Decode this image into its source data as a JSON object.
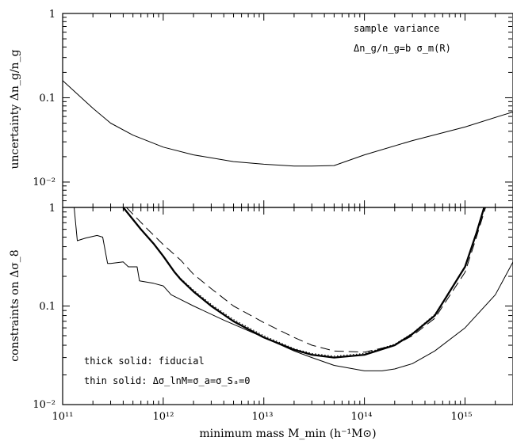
{
  "chart_data": [
    {
      "type": "line",
      "panel": "top",
      "xscale": "log",
      "yscale": "log",
      "xlim": [
        100000000000.0,
        3000000000000000.0
      ],
      "ylim": [
        0.005,
        1
      ],
      "ylabel": "uncertainty Δn_g/n_g",
      "yticks": [
        {
          "value": 1,
          "label": "1"
        },
        {
          "value": 0.1,
          "label": "0.1"
        },
        {
          "value": 0.01,
          "label": "10⁻²"
        }
      ],
      "annotations": [
        "sample variance",
        "Δn_g/n_g=b σ_m(R)"
      ],
      "series": [
        {
          "style": "thin-solid",
          "points": [
            [
              100000000000.0,
              0.16
            ],
            [
              200000000000.0,
              0.075
            ],
            [
              300000000000.0,
              0.05
            ],
            [
              500000000000.0,
              0.036
            ],
            [
              1000000000000.0,
              0.026
            ],
            [
              2000000000000.0,
              0.021
            ],
            [
              5000000000000.0,
              0.0175
            ],
            [
              10000000000000.0,
              0.0163
            ],
            [
              20000000000000.0,
              0.0155
            ],
            [
              30000000000000.0,
              0.0155
            ],
            [
              50000000000000.0,
              0.0157
            ],
            [
              100000000000000.0,
              0.021
            ],
            [
              300000000000000.0,
              0.031
            ],
            [
              1000000000000000.0,
              0.045
            ],
            [
              3000000000000000.0,
              0.068
            ]
          ]
        }
      ]
    },
    {
      "type": "line",
      "panel": "bottom",
      "xscale": "log",
      "yscale": "log",
      "xlim": [
        100000000000.0,
        3000000000000000.0
      ],
      "ylim": [
        0.01,
        1
      ],
      "xlabel": "minimum mass M_min (h⁻¹M⊙)",
      "ylabel": "constraints on Δσ_8",
      "xticks": [
        {
          "value": 100000000000.0,
          "label": "10¹¹"
        },
        {
          "value": 1000000000000.0,
          "label": "10¹²"
        },
        {
          "value": 10000000000000.0,
          "label": "10¹³"
        },
        {
          "value": 100000000000000.0,
          "label": "10¹⁴"
        },
        {
          "value": 1000000000000000.0,
          "label": "10¹⁵"
        }
      ],
      "yticks": [
        {
          "value": 1,
          "label": "1"
        },
        {
          "value": 0.1,
          "label": "0.1"
        },
        {
          "value": 0.01,
          "label": "10⁻²"
        }
      ],
      "legend": [
        "thick solid: fiducial",
        "thin solid: Δσ_lnM=σ_a=σ_Sₐ=0"
      ],
      "series": [
        {
          "style": "thick-solid",
          "points": [
            [
              400000000000.0,
              1.0
            ],
            [
              600000000000.0,
              0.6
            ],
            [
              800000000000.0,
              0.43
            ],
            [
              1000000000000.0,
              0.32
            ],
            [
              1300000000000.0,
              0.22
            ],
            [
              1500000000000.0,
              0.185
            ],
            [
              2000000000000.0,
              0.14
            ],
            [
              3000000000000.0,
              0.1
            ],
            [
              5000000000000.0,
              0.07
            ],
            [
              10000000000000.0,
              0.048
            ],
            [
              20000000000000.0,
              0.036
            ],
            [
              30000000000000.0,
              0.032
            ],
            [
              50000000000000.0,
              0.03
            ],
            [
              100000000000000.0,
              0.032
            ],
            [
              200000000000000.0,
              0.04
            ],
            [
              300000000000000.0,
              0.052
            ],
            [
              500000000000000.0,
              0.08
            ],
            [
              1000000000000000.0,
              0.25
            ],
            [
              1300000000000000.0,
              0.55
            ],
            [
              1550000000000000.0,
              1.0
            ]
          ]
        },
        {
          "style": "dotted",
          "points": [
            [
              400000000000.0,
              1.0
            ],
            [
              600000000000.0,
              0.6
            ],
            [
              800000000000.0,
              0.43
            ],
            [
              1000000000000.0,
              0.32
            ],
            [
              1300000000000.0,
              0.22
            ],
            [
              1500000000000.0,
              0.19
            ],
            [
              2000000000000.0,
              0.145
            ],
            [
              3000000000000.0,
              0.104
            ],
            [
              5000000000000.0,
              0.073
            ],
            [
              10000000000000.0,
              0.05
            ],
            [
              20000000000000.0,
              0.037
            ],
            [
              30000000000000.0,
              0.033
            ],
            [
              50000000000000.0,
              0.031
            ],
            [
              100000000000000.0,
              0.033
            ],
            [
              200000000000000.0,
              0.041
            ],
            [
              300000000000000.0,
              0.053
            ],
            [
              500000000000000.0,
              0.082
            ],
            [
              1000000000000000.0,
              0.25
            ],
            [
              1300000000000000.0,
              0.55
            ],
            [
              1550000000000000.0,
              1.0
            ]
          ]
        },
        {
          "style": "long-dash",
          "points": [
            [
              430000000000.0,
              1.0
            ],
            [
              700000000000.0,
              0.6
            ],
            [
              1000000000000.0,
              0.42
            ],
            [
              1500000000000.0,
              0.29
            ],
            [
              2000000000000.0,
              0.21
            ],
            [
              3000000000000.0,
              0.15
            ],
            [
              5000000000000.0,
              0.1
            ],
            [
              10000000000000.0,
              0.068
            ],
            [
              20000000000000.0,
              0.048
            ],
            [
              30000000000000.0,
              0.04
            ],
            [
              50000000000000.0,
              0.035
            ],
            [
              100000000000000.0,
              0.034
            ],
            [
              200000000000000.0,
              0.04
            ],
            [
              300000000000000.0,
              0.05
            ],
            [
              500000000000000.0,
              0.075
            ],
            [
              1000000000000000.0,
              0.22
            ],
            [
              1300000000000000.0,
              0.5
            ],
            [
              1600000000000000.0,
              1.0
            ]
          ]
        },
        {
          "style": "thin-solid",
          "points": [
            [
              130000000000.0,
              1.0
            ],
            [
              140000000000.0,
              0.46
            ],
            [
              170000000000.0,
              0.49
            ],
            [
              220000000000.0,
              0.52
            ],
            [
              250000000000.0,
              0.5
            ],
            [
              280000000000.0,
              0.27
            ],
            [
              300000000000.0,
              0.27
            ],
            [
              400000000000.0,
              0.28
            ],
            [
              450000000000.0,
              0.25
            ],
            [
              550000000000.0,
              0.25
            ],
            [
              580000000000.0,
              0.18
            ],
            [
              800000000000.0,
              0.17
            ],
            [
              1000000000000.0,
              0.16
            ],
            [
              1200000000000.0,
              0.13
            ],
            [
              2000000000000.0,
              0.1
            ],
            [
              4000000000000.0,
              0.072
            ],
            [
              10000000000000.0,
              0.048
            ],
            [
              20000000000000.0,
              0.035
            ],
            [
              30000000000000.0,
              0.03
            ],
            [
              50000000000000.0,
              0.025
            ],
            [
              100000000000000.0,
              0.022
            ],
            [
              150000000000000.0,
              0.022
            ],
            [
              200000000000000.0,
              0.023
            ],
            [
              300000000000000.0,
              0.026
            ],
            [
              500000000000000.0,
              0.035
            ],
            [
              1000000000000000.0,
              0.06
            ],
            [
              2000000000000000.0,
              0.13
            ],
            [
              3000000000000000.0,
              0.28
            ]
          ]
        }
      ]
    }
  ]
}
